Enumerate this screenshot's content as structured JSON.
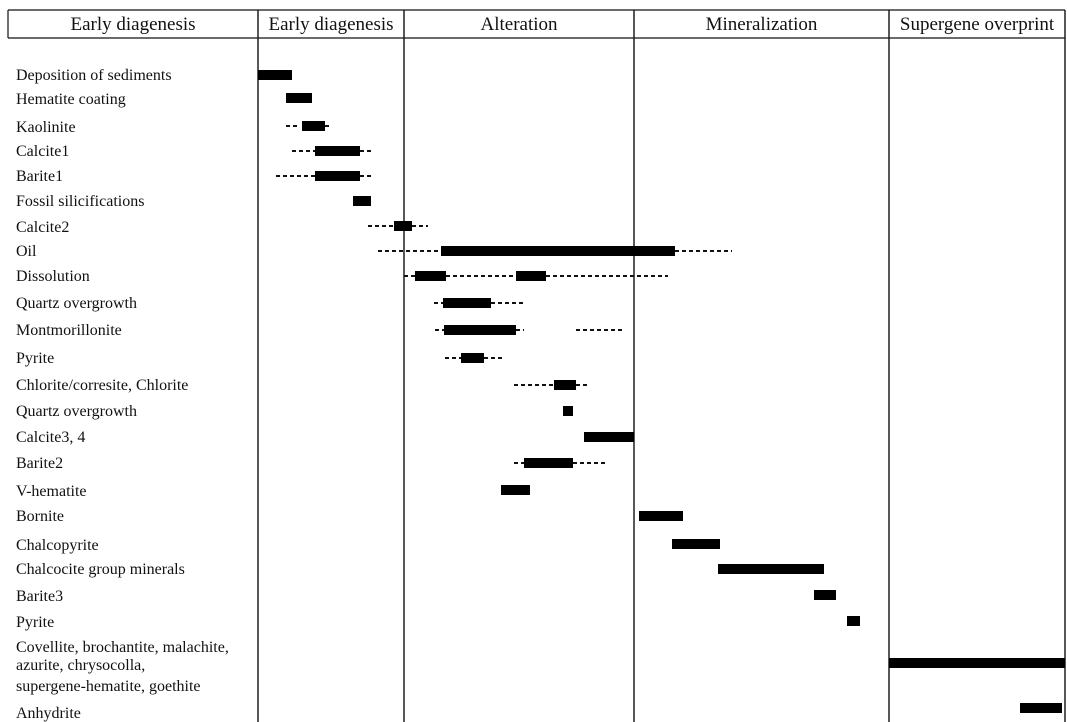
{
  "headers": [
    "Early diagenesis",
    "Early diagenesis",
    "Alteration",
    "Mineralization",
    "Supergene overprint"
  ],
  "rows": [
    {
      "label": [
        "Deposition of sediments"
      ],
      "solid": [
        [
          258,
          292
        ]
      ],
      "dashed": []
    },
    {
      "label": [
        "Hematite coating"
      ],
      "solid": [
        [
          286,
          312
        ]
      ],
      "dashed": []
    },
    {
      "label": [
        "Kaolinite"
      ],
      "solid": [
        [
          302,
          325
        ]
      ],
      "dashed": [
        [
          286,
          300
        ],
        [
          325,
          332
        ]
      ]
    },
    {
      "label": [
        "Calcite1"
      ],
      "solid": [
        [
          315,
          360
        ]
      ],
      "dashed": [
        [
          292,
          315
        ],
        [
          360,
          374
        ]
      ]
    },
    {
      "label": [
        "Barite1"
      ],
      "solid": [
        [
          315,
          360
        ]
      ],
      "dashed": [
        [
          276,
          315
        ],
        [
          360,
          374
        ]
      ]
    },
    {
      "label": [
        "Fossil silicifications"
      ],
      "solid": [
        [
          353,
          371
        ]
      ],
      "dashed": []
    },
    {
      "label": [
        "Calcite2"
      ],
      "solid": [
        [
          394,
          412
        ]
      ],
      "dashed": [
        [
          368,
          394
        ],
        [
          412,
          428
        ]
      ]
    },
    {
      "label": [
        "Oil"
      ],
      "solid": [
        [
          441,
          675
        ]
      ],
      "dashed": [
        [
          378,
          441
        ],
        [
          675,
          732
        ]
      ]
    },
    {
      "label": [
        "Dissolution"
      ],
      "solid": [
        [
          415,
          446
        ],
        [
          516,
          546
        ]
      ],
      "dashed": [
        [
          404,
          415
        ],
        [
          446,
          516
        ],
        [
          546,
          668
        ]
      ]
    },
    {
      "label": [
        "Quartz overgrowth"
      ],
      "solid": [
        [
          443,
          491
        ]
      ],
      "dashed": [
        [
          434,
          443
        ],
        [
          491,
          523
        ]
      ]
    },
    {
      "label": [
        "Montmorillonite"
      ],
      "solid": [
        [
          444,
          516
        ]
      ],
      "dashed": [
        [
          435,
          444
        ],
        [
          516,
          524
        ],
        [
          576,
          623
        ]
      ]
    },
    {
      "label": [
        "Pyrite"
      ],
      "solid": [
        [
          461,
          484
        ]
      ],
      "dashed": [
        [
          445,
          461
        ],
        [
          484,
          505
        ]
      ]
    },
    {
      "label": [
        "Chlorite/corresite, Chlorite"
      ],
      "solid": [
        [
          554,
          576
        ]
      ],
      "dashed": [
        [
          514,
          554
        ],
        [
          576,
          590
        ]
      ]
    },
    {
      "label": [
        "Quartz overgrowth"
      ],
      "solid": [
        [
          563,
          573
        ]
      ],
      "dashed": []
    },
    {
      "label": [
        "Calcite3, 4"
      ],
      "solid": [
        [
          584,
          634
        ]
      ],
      "dashed": []
    },
    {
      "label": [
        "Barite2"
      ],
      "solid": [
        [
          524,
          573
        ]
      ],
      "dashed": [
        [
          514,
          524
        ],
        [
          573,
          605
        ]
      ]
    },
    {
      "label": [
        "V-hematite"
      ],
      "solid": [
        [
          501,
          530
        ]
      ],
      "dashed": []
    },
    {
      "label": [
        "Bornite"
      ],
      "solid": [
        [
          639,
          683
        ]
      ],
      "dashed": []
    },
    {
      "label": [
        "Chalcopyrite"
      ],
      "solid": [
        [
          672,
          720
        ]
      ],
      "dashed": []
    },
    {
      "label": [
        "Chalcocite group minerals"
      ],
      "solid": [
        [
          718,
          824
        ]
      ],
      "dashed": []
    },
    {
      "label": [
        "Barite3"
      ],
      "solid": [
        [
          814,
          836
        ]
      ],
      "dashed": []
    },
    {
      "label": [
        "Pyrite"
      ],
      "solid": [
        [
          847,
          860
        ]
      ],
      "dashed": []
    },
    {
      "label": [
        "Covellite, brochantite, malachite,",
        "azurite, chrysocolla,",
        "supergene-hematite, goethite"
      ],
      "solid": [
        [
          889,
          1065
        ]
      ],
      "dashed": []
    },
    {
      "label": [
        "Anhydrite"
      ],
      "solid": [
        [
          1020,
          1062
        ]
      ],
      "dashed": []
    }
  ]
}
